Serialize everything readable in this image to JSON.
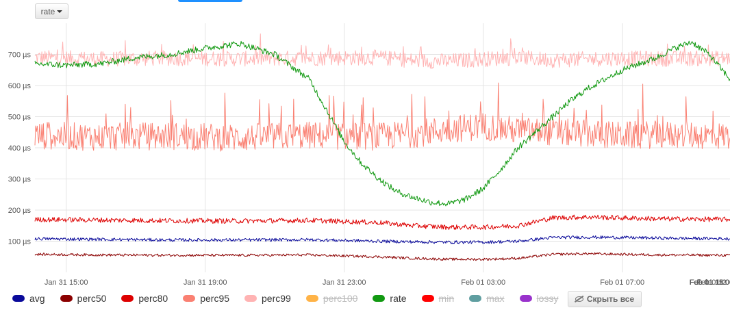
{
  "toolbar": {
    "rate_label": "rate"
  },
  "hide_all_label": "Скрыть все",
  "legend": [
    {
      "name": "avg",
      "color": "#0a0a9a",
      "enabled": true
    },
    {
      "name": "perc50",
      "color": "#8b0000",
      "enabled": true
    },
    {
      "name": "perc80",
      "color": "#dd0000",
      "enabled": true
    },
    {
      "name": "perc95",
      "color": "#fa8072",
      "enabled": true
    },
    {
      "name": "perc99",
      "color": "#ffb3b3",
      "enabled": true
    },
    {
      "name": "perc100",
      "color": "#ffb347",
      "enabled": false
    },
    {
      "name": "rate",
      "color": "#119911",
      "enabled": true
    },
    {
      "name": "min",
      "color": "#ff0000",
      "enabled": false
    },
    {
      "name": "max",
      "color": "#5f9ea0",
      "enabled": false
    },
    {
      "name": "lossy",
      "color": "#9932cc",
      "enabled": false
    }
  ],
  "chart_data": {
    "type": "line",
    "title": "",
    "xlabel": "",
    "ylabel": "",
    "ylim": [
      0,
      800
    ],
    "yticks": [
      {
        "v": 100,
        "label": "100 µs"
      },
      {
        "v": 200,
        "label": "200 µs"
      },
      {
        "v": 300,
        "label": "300 µs"
      },
      {
        "v": 400,
        "label": "400 µs"
      },
      {
        "v": 500,
        "label": "500 µs"
      },
      {
        "v": 600,
        "label": "600 µs"
      },
      {
        "v": 700,
        "label": "700 µs"
      }
    ],
    "xlim": [
      14.1,
      34.1
    ],
    "xticks": [
      {
        "h": 15,
        "label": "Jan 31 15:00"
      },
      {
        "h": 19,
        "label": "Jan 31 19:00"
      },
      {
        "h": 23,
        "label": "Jan 31 23:00"
      },
      {
        "h": 27,
        "label": "Feb 01 03:00"
      },
      {
        "h": 31,
        "label": "Feb 01 07:00"
      },
      {
        "h": 35,
        "label": "Feb 01 11:00"
      },
      {
        "h": 39,
        "label": "Feb 01 15:00"
      },
      {
        "h": 43,
        "label": "Feb 01 19:00"
      },
      {
        "h": 47,
        "label": "Feb 01 2"
      }
    ],
    "grid": true,
    "series": [
      {
        "name": "perc99",
        "color": "#ffb3b3",
        "x": [
          14.1,
          16,
          18,
          20,
          22,
          24,
          25,
          26,
          27,
          28,
          29,
          30,
          31,
          32,
          34.1
        ],
        "y": [
          690,
          685,
          688,
          686,
          688,
          690,
          680,
          678,
          685,
          690,
          682,
          685,
          688,
          686,
          688
        ],
        "noise": 25
      },
      {
        "name": "perc95",
        "color": "#fa8072",
        "x": [
          14.1,
          16,
          18,
          20,
          22,
          24,
          25,
          26,
          27,
          28,
          29,
          30,
          31,
          32,
          34.1
        ],
        "y": [
          440,
          435,
          438,
          432,
          440,
          436,
          445,
          460,
          470,
          455,
          450,
          445,
          440,
          442,
          438
        ],
        "noise": 45
      },
      {
        "name": "perc80",
        "color": "#dd0000",
        "x": [
          14.1,
          16,
          18,
          20,
          22,
          24,
          25,
          26,
          27,
          28,
          29,
          30,
          31,
          32,
          34.1
        ],
        "y": [
          170,
          168,
          166,
          165,
          167,
          160,
          150,
          145,
          145,
          150,
          175,
          178,
          175,
          172,
          170
        ],
        "noise": 8
      },
      {
        "name": "avg",
        "color": "#0a0a9a",
        "x": [
          14.1,
          16,
          18,
          20,
          22,
          24,
          25,
          26,
          27,
          28,
          29,
          30,
          31,
          32,
          34.1
        ],
        "y": [
          108,
          106,
          104,
          104,
          105,
          100,
          98,
          97,
          97,
          100,
          112,
          113,
          112,
          110,
          108
        ],
        "noise": 5
      },
      {
        "name": "perc50",
        "color": "#8b0000",
        "x": [
          14.1,
          16,
          18,
          20,
          22,
          24,
          25,
          26,
          27,
          28,
          29,
          30,
          31,
          32,
          34.1
        ],
        "y": [
          58,
          56,
          55,
          55,
          56,
          50,
          45,
          42,
          42,
          45,
          58,
          60,
          58,
          56,
          55
        ],
        "noise": 4
      },
      {
        "name": "rate",
        "color": "#119911",
        "x": [
          14.1,
          15,
          16,
          17,
          18,
          19,
          20,
          21,
          22,
          22.5,
          23,
          23.5,
          24,
          24.5,
          25,
          25.5,
          26,
          26.5,
          27,
          27.5,
          28,
          28.5,
          29,
          29.5,
          30,
          30.5,
          31,
          31.5,
          32,
          32.5,
          33,
          33.5,
          34.1
        ],
        "y": [
          670,
          665,
          670,
          690,
          700,
          720,
          735,
          700,
          620,
          520,
          420,
          350,
          300,
          260,
          240,
          225,
          220,
          235,
          270,
          330,
          400,
          450,
          500,
          550,
          590,
          620,
          650,
          670,
          690,
          720,
          740,
          700,
          620
        ],
        "noise": 10
      }
    ]
  }
}
